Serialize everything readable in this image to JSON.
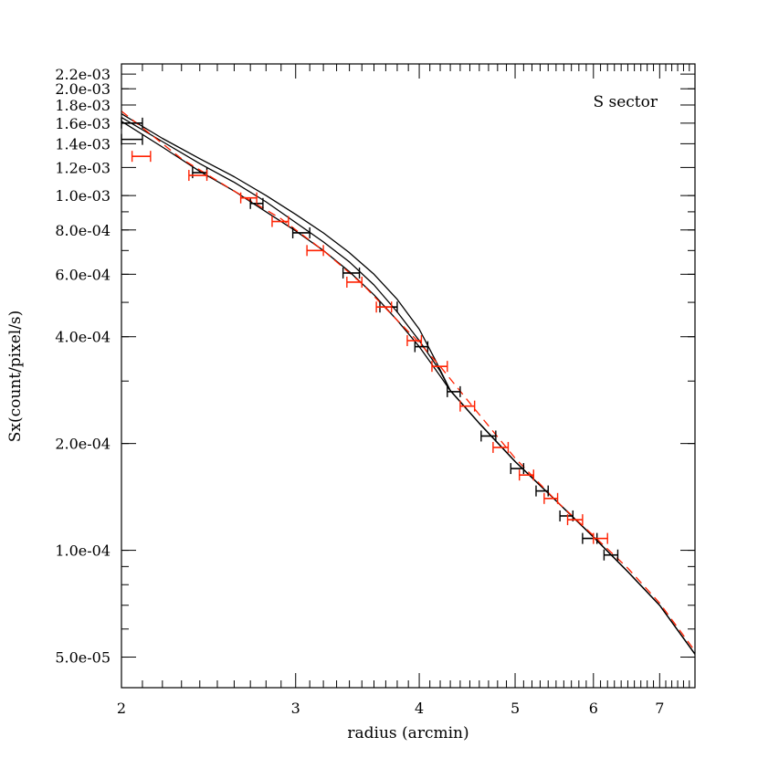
{
  "chart_data": {
    "type": "scatter",
    "xscale": "log",
    "yscale": "log",
    "xlim": [
      2.0,
      7.6
    ],
    "ylim": [
      4.1e-05,
      0.00235
    ],
    "xlabel": "radius (arcmin)",
    "ylabel": "Sx(count/pixel/s)",
    "annotation": "S sector",
    "grid": false,
    "x_ticks": [
      {
        "value": 2,
        "label": "2"
      },
      {
        "value": 3,
        "label": "3"
      },
      {
        "value": 4,
        "label": "4"
      },
      {
        "value": 5,
        "label": "5"
      },
      {
        "value": 6,
        "label": "6"
      },
      {
        "value": 7,
        "label": "7"
      }
    ],
    "y_ticks": [
      {
        "value": 5e-05,
        "label": "5.0e-05"
      },
      {
        "value": 0.0001,
        "label": "1.0e-04"
      },
      {
        "value": 0.0002,
        "label": "2.0e-04"
      },
      {
        "value": 0.0004,
        "label": "4.0e-04"
      },
      {
        "value": 0.0006,
        "label": "6.0e-04"
      },
      {
        "value": 0.0008,
        "label": "8.0e-04"
      },
      {
        "value": 0.001,
        "label": "1.0e-03"
      },
      {
        "value": 0.0012,
        "label": "1.2e-03"
      },
      {
        "value": 0.0014,
        "label": "1.4e-03"
      },
      {
        "value": 0.0016,
        "label": "1.6e-03"
      },
      {
        "value": 0.0018,
        "label": "1.8e-03"
      },
      {
        "value": 0.002,
        "label": "2.0e-03"
      },
      {
        "value": 0.0022,
        "label": "2.2e-03"
      }
    ],
    "series": [
      {
        "color": "#000000",
        "points": [
          {
            "xmin": 2.0,
            "xmax": 2.1,
            "y": 0.0016
          },
          {
            "xmin": 2.0,
            "xmax": 2.1,
            "y": 0.00144
          },
          {
            "xmin": 2.36,
            "xmax": 2.44,
            "y": 0.00116
          },
          {
            "xmin": 2.7,
            "xmax": 2.78,
            "y": 0.00095
          },
          {
            "xmin": 2.98,
            "xmax": 3.1,
            "y": 0.000785
          },
          {
            "xmin": 3.35,
            "xmax": 3.48,
            "y": 0.000605
          },
          {
            "xmin": 3.65,
            "xmax": 3.8,
            "y": 0.000485
          },
          {
            "xmin": 3.96,
            "xmax": 4.08,
            "y": 0.000375
          },
          {
            "xmin": 4.27,
            "xmax": 4.4,
            "y": 0.00028
          },
          {
            "xmin": 4.62,
            "xmax": 4.78,
            "y": 0.00021
          },
          {
            "xmin": 4.95,
            "xmax": 5.1,
            "y": 0.00017
          },
          {
            "xmin": 5.25,
            "xmax": 5.4,
            "y": 0.000147
          },
          {
            "xmin": 5.55,
            "xmax": 5.72,
            "y": 0.000125
          },
          {
            "xmin": 5.85,
            "xmax": 6.05,
            "y": 0.000108
          },
          {
            "xmin": 6.15,
            "xmax": 6.35,
            "y": 9.7e-05
          }
        ]
      },
      {
        "color": "#ff2000",
        "points": [
          {
            "xmin": 2.05,
            "xmax": 2.14,
            "y": 0.00129
          },
          {
            "xmin": 2.34,
            "xmax": 2.44,
            "y": 0.00114
          },
          {
            "xmin": 2.64,
            "xmax": 2.74,
            "y": 0.000985
          },
          {
            "xmin": 2.84,
            "xmax": 2.95,
            "y": 0.000845
          },
          {
            "xmin": 3.08,
            "xmax": 3.2,
            "y": 0.0007
          },
          {
            "xmin": 3.38,
            "xmax": 3.5,
            "y": 0.00057
          },
          {
            "xmin": 3.62,
            "xmax": 3.75,
            "y": 0.000485
          },
          {
            "xmin": 3.89,
            "xmax": 4.02,
            "y": 0.00039
          },
          {
            "xmin": 4.12,
            "xmax": 4.27,
            "y": 0.00033
          },
          {
            "xmin": 4.4,
            "xmax": 4.55,
            "y": 0.000255
          },
          {
            "xmin": 4.75,
            "xmax": 4.92,
            "y": 0.000195
          },
          {
            "xmin": 5.05,
            "xmax": 5.22,
            "y": 0.000163
          },
          {
            "xmin": 5.35,
            "xmax": 5.52,
            "y": 0.00014
          },
          {
            "xmin": 5.65,
            "xmax": 5.85,
            "y": 0.000122
          },
          {
            "xmin": 6.0,
            "xmax": 6.2,
            "y": 0.000108
          }
        ]
      }
    ],
    "model_curves": [
      {
        "color": "#000000",
        "style": "solid",
        "points": [
          [
            2.0,
            0.00166
          ],
          [
            2.2,
            0.00142
          ],
          [
            2.4,
            0.00123
          ],
          [
            2.6,
            0.00109
          ],
          [
            2.8,
            0.00096
          ],
          [
            3.0,
            0.00084
          ],
          [
            3.2,
            0.00074
          ],
          [
            3.4,
            0.00065
          ],
          [
            3.6,
            0.00056
          ],
          [
            3.8,
            0.00047
          ],
          [
            4.0,
            0.00039
          ],
          [
            4.2,
            0.00032
          ],
          [
            4.3,
            0.000282
          ],
          [
            4.6,
            0.000228
          ],
          [
            5.0,
            0.000178
          ],
          [
            5.5,
            0.000138
          ],
          [
            6.0,
            0.000109
          ],
          [
            6.5,
            8.7e-05
          ],
          [
            7.0,
            7e-05
          ],
          [
            7.6,
            5.1e-05
          ]
        ]
      },
      {
        "color": "#000000",
        "style": "solid",
        "points": [
          [
            2.0,
            0.0017
          ],
          [
            2.2,
            0.00145
          ],
          [
            2.4,
            0.00127
          ],
          [
            2.6,
            0.00113
          ],
          [
            2.8,
            0.001
          ],
          [
            3.0,
            0.000885
          ],
          [
            3.2,
            0.000785
          ],
          [
            3.4,
            0.00069
          ],
          [
            3.6,
            0.0006
          ],
          [
            3.8,
            0.00051
          ],
          [
            4.0,
            0.00042
          ],
          [
            4.15,
            0.000345
          ],
          [
            4.3,
            0.000282
          ],
          [
            4.6,
            0.000228
          ],
          [
            5.0,
            0.000178
          ],
          [
            5.5,
            0.000138
          ],
          [
            6.0,
            0.000109
          ],
          [
            6.5,
            8.7e-05
          ],
          [
            7.0,
            7e-05
          ],
          [
            7.6,
            5.1e-05
          ]
        ]
      },
      {
        "color": "#000000",
        "style": "solid",
        "points": [
          [
            2.0,
            0.00162
          ],
          [
            2.2,
            0.00137
          ],
          [
            2.4,
            0.00117
          ],
          [
            2.6,
            0.00103
          ],
          [
            2.8,
            0.0009
          ],
          [
            3.0,
            0.000795
          ],
          [
            3.2,
            0.0007
          ],
          [
            3.4,
            0.00061
          ],
          [
            3.6,
            0.000525
          ],
          [
            3.8,
            0.000445
          ],
          [
            4.0,
            0.000375
          ],
          [
            4.2,
            0.00031
          ],
          [
            4.3,
            0.000282
          ],
          [
            4.6,
            0.000228
          ],
          [
            5.0,
            0.000178
          ],
          [
            5.5,
            0.000138
          ],
          [
            6.0,
            0.000109
          ],
          [
            6.5,
            8.7e-05
          ],
          [
            7.0,
            7e-05
          ],
          [
            7.6,
            5.1e-05
          ]
        ]
      },
      {
        "color": "#ff2000",
        "style": "dashed",
        "points": [
          [
            2.0,
            0.00173
          ],
          [
            2.3,
            0.00127
          ],
          [
            2.6,
            0.00103
          ],
          [
            2.9,
            0.00086
          ],
          [
            3.2,
            0.0007
          ],
          [
            3.5,
            0.000565
          ],
          [
            3.8,
            0.000445
          ],
          [
            4.0,
            0.000385
          ],
          [
            4.2,
            0.00033
          ],
          [
            4.5,
            0.00026
          ],
          [
            5.0,
            0.000182
          ],
          [
            5.5,
            0.000138
          ],
          [
            6.0,
            0.00011
          ],
          [
            6.5,
            8.9e-05
          ],
          [
            7.0,
            7.1e-05
          ],
          [
            7.6,
            5.2e-05
          ]
        ]
      }
    ]
  }
}
